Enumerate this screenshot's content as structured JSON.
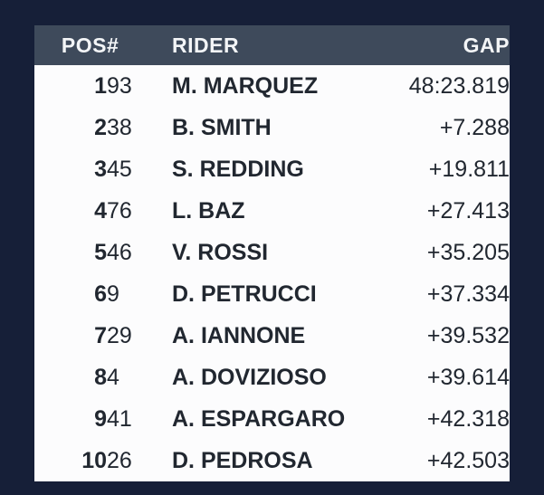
{
  "chart_data": {
    "type": "table",
    "columns": [
      {
        "key": "pos",
        "label": "POS",
        "align": "right"
      },
      {
        "key": "num",
        "label": "#",
        "align": "left"
      },
      {
        "key": "rider",
        "label": "RIDER",
        "align": "left"
      },
      {
        "key": "gap",
        "label": "GAP",
        "align": "right"
      }
    ],
    "rows": [
      {
        "pos": "1",
        "num": "93",
        "rider": "M. MARQUEZ",
        "gap": "48:23.819"
      },
      {
        "pos": "2",
        "num": "38",
        "rider": "B. SMITH",
        "gap": "+7.288"
      },
      {
        "pos": "3",
        "num": "45",
        "rider": "S. REDDING",
        "gap": "+19.811"
      },
      {
        "pos": "4",
        "num": "76",
        "rider": "L. BAZ",
        "gap": "+27.413"
      },
      {
        "pos": "5",
        "num": "46",
        "rider": "V. ROSSI",
        "gap": "+35.205"
      },
      {
        "pos": "6",
        "num": "9",
        "rider": "D. PETRUCCI",
        "gap": "+37.334"
      },
      {
        "pos": "7",
        "num": "29",
        "rider": "A. IANNONE",
        "gap": "+39.532"
      },
      {
        "pos": "8",
        "num": "4",
        "rider": "A. DOVIZIOSO",
        "gap": "+39.614"
      },
      {
        "pos": "9",
        "num": "41",
        "rider": "A. ESPARGARO",
        "gap": "+42.318"
      },
      {
        "pos": "10",
        "num": "26",
        "rider": "D. PEDROSA",
        "gap": "+42.503"
      }
    ],
    "layout": {
      "grid": false,
      "zebra_striping": false,
      "header_position": "top"
    }
  },
  "colors": {
    "page_bg": "#161F38",
    "header_bg": "#3E4A5B",
    "header_text": "#F3F5F7",
    "row_bg": "#FCFCFD",
    "row_text": "#212730"
  }
}
